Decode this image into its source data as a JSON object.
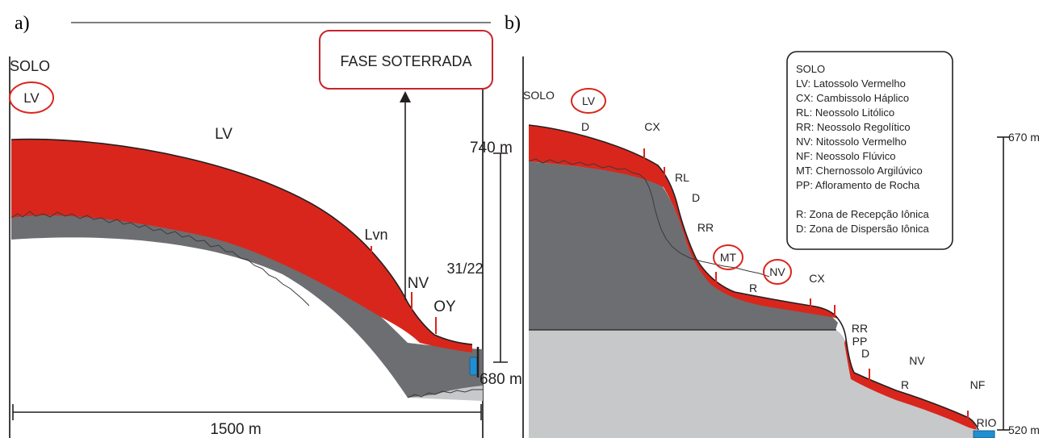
{
  "panel_a": {
    "tag": "a)",
    "solo_label": "SOLO",
    "solo_circle": "LV",
    "top_soil_label": "LV",
    "lvn_label": "Lvn",
    "nv_label": "NV",
    "oy_label": "OY",
    "fase_label": "FASE SOTERRADA",
    "code_label": "31/22",
    "elev_top": "740 m",
    "elev_bottom": "680 m",
    "distance": "1500 m"
  },
  "panel_b": {
    "tag": "b)",
    "solo_label": "SOLO",
    "circles": [
      "LV",
      "MT",
      "NV"
    ],
    "labels": {
      "d1": "D",
      "cx1": "CX",
      "rl": "RL",
      "d2": "D",
      "rr1": "RR",
      "r1": "R",
      "cx2": "CX",
      "rr2": "RR",
      "pp": "PP",
      "d3": "D",
      "nv": "NV",
      "r2": "R",
      "nf": "NF",
      "rio": "RIO"
    },
    "elev_top": "670 m",
    "elev_bottom": "520 m",
    "legend": [
      "SOLO",
      "LV: Latossolo Vermelho",
      "CX: Cambissolo Háplico",
      "RL: Neossolo Litólico",
      "RR: Neossolo Regolítico",
      "NV: Nitossolo Vermelho",
      "NF: Neossolo Flúvico",
      "MT: Chernossolo Argilúvico",
      "PP: Afloramento de Rocha",
      "",
      "R: Zona de Recepção Iônica",
      "D: Zona de Dispersão Iônica"
    ]
  },
  "colors": {
    "soil_red": "#d9261c",
    "saprolite_dark": "#6d6e71",
    "rock_light": "#c7c8ca",
    "marker_red": "#d9261c",
    "water_blue": "#1f8fd1"
  }
}
